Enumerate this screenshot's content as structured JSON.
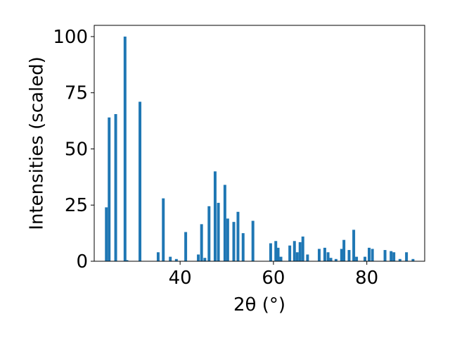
{
  "chart_data": {
    "type": "bar",
    "xlabel": "2θ (°)",
    "ylabel": "Intensities (scaled)",
    "xlim": [
      21.6,
      92.4
    ],
    "ylim": [
      0,
      105
    ],
    "x_ticks": [
      40,
      60,
      80
    ],
    "y_ticks": [
      0,
      25,
      50,
      75,
      100
    ],
    "grid": false,
    "color": "#1f77b4",
    "bar_width": 0.6,
    "x": [
      24.2,
      24.8,
      26.2,
      28.2,
      28.6,
      31.4,
      35.3,
      36.4,
      37.9,
      39.2,
      41.2,
      43.9,
      44.6,
      45.3,
      46.2,
      47.5,
      48.2,
      49.6,
      50.2,
      51.5,
      52.4,
      53.5,
      55.6,
      59.4,
      60.5,
      61.0,
      61.6,
      63.5,
      64.5,
      65.1,
      65.7,
      66.3,
      67.3,
      69.8,
      71.0,
      71.7,
      72.3,
      73.4,
      74.6,
      75.1,
      76.2,
      77.2,
      77.8,
      79.6,
      80.5,
      81.2,
      83.9,
      85.2,
      85.8,
      87.1,
      88.5,
      89.9
    ],
    "values": [
      24,
      64,
      65.5,
      100,
      0.5,
      71,
      4,
      28,
      2,
      1,
      13,
      3,
      16.5,
      1.5,
      24.5,
      40,
      26,
      34,
      19,
      17.5,
      22,
      12.5,
      18,
      8,
      9,
      6,
      2,
      7,
      9,
      4,
      8.5,
      11,
      3,
      5.5,
      6,
      4,
      1.5,
      1,
      5.5,
      9.5,
      5,
      14,
      2,
      2,
      6,
      5.5,
      5,
      4.5,
      4,
      1,
      4,
      1
    ]
  }
}
